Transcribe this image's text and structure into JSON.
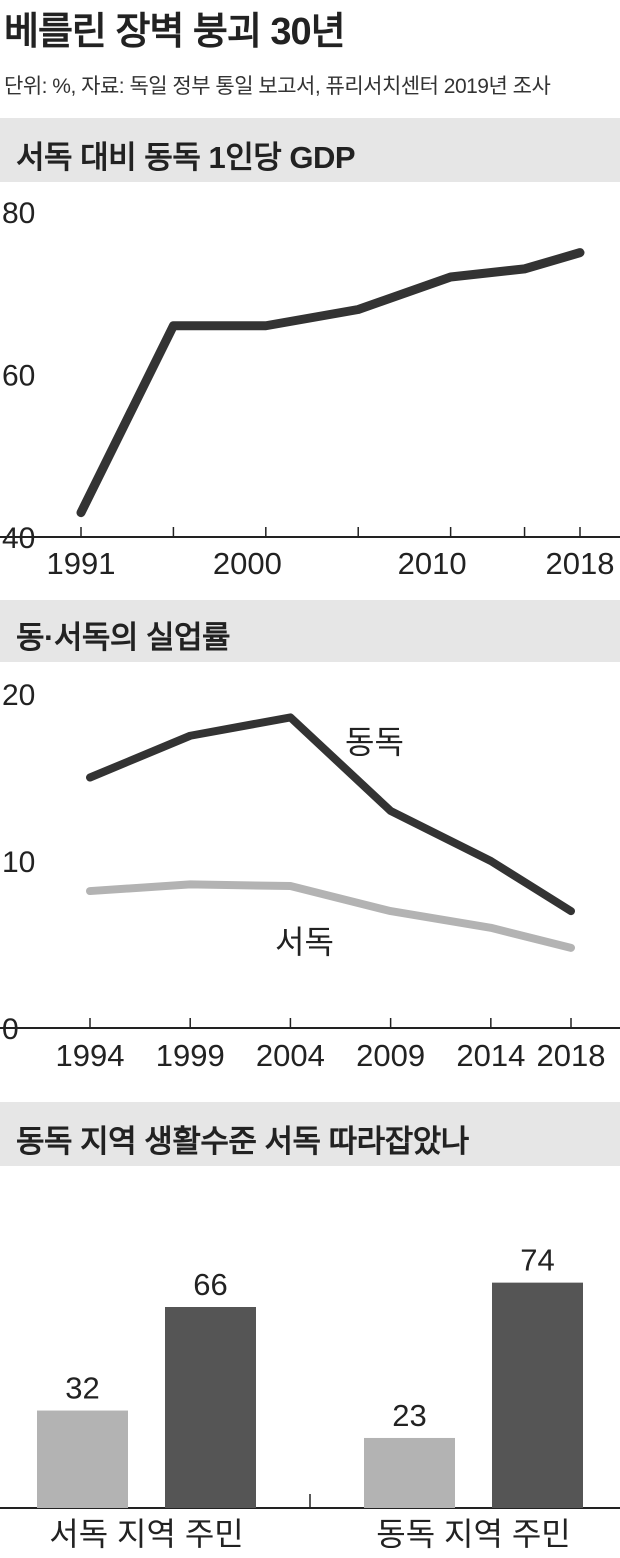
{
  "header": {
    "title": "베를린 장벽 붕괴 30년",
    "source": "단위: %, 자료: 독일 정부 통일 보고서, 퓨리서치센터 2019년 조사"
  },
  "colors": {
    "dark": "#333333",
    "light": "#b3b3b3",
    "darkbar": "#555555",
    "band": "#e6e6e6"
  },
  "chart_data": [
    {
      "type": "line",
      "title": "서독 대비 동독 1인당 GDP",
      "x": [
        1991,
        1996,
        2001,
        2006,
        2011,
        2015,
        2018
      ],
      "xticks": [
        1991,
        2000,
        2010,
        2018
      ],
      "yticks": [
        40,
        60,
        80
      ],
      "ylim": [
        40,
        80
      ],
      "series": [
        {
          "values": [
            43,
            66,
            66,
            68,
            72,
            73,
            75
          ]
        }
      ]
    },
    {
      "type": "line",
      "title": "동·서독의 실업률",
      "x": [
        1994,
        1999,
        2004,
        2009,
        2014,
        2018
      ],
      "xticks": [
        1994,
        1999,
        2004,
        2009,
        2014,
        2018
      ],
      "yticks": [
        0,
        10,
        20
      ],
      "ylim": [
        0,
        20
      ],
      "series": [
        {
          "name": "동독",
          "values": [
            15,
            17.5,
            18.6,
            13,
            10,
            7
          ]
        },
        {
          "name": "서독",
          "values": [
            8.2,
            8.6,
            8.5,
            7,
            6,
            4.8
          ]
        }
      ]
    },
    {
      "type": "bar",
      "title": "동독 지역 생활수준 서독 따라잡았나",
      "categories": [
        "서독 지역 주민",
        "동독 지역 주민"
      ],
      "ylim": [
        0,
        80
      ],
      "series": [
        {
          "values": [
            32,
            23
          ]
        },
        {
          "values": [
            66,
            74
          ]
        }
      ]
    }
  ]
}
